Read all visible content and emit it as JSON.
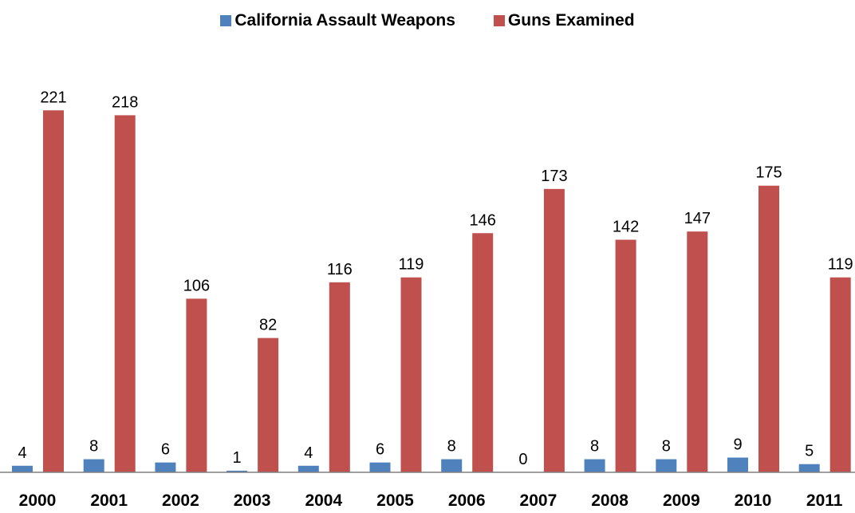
{
  "chart_data": {
    "type": "bar",
    "categories": [
      "2000",
      "2001",
      "2002",
      "2003",
      "2004",
      "2005",
      "2006",
      "2007",
      "2008",
      "2009",
      "2010",
      "2011"
    ],
    "series": [
      {
        "name": "California Assault Weapons",
        "color": "#4f81bd",
        "values": [
          4,
          8,
          6,
          1,
          4,
          6,
          8,
          0,
          8,
          8,
          9,
          5
        ]
      },
      {
        "name": "Guns Examined",
        "color": "#c0504d",
        "values": [
          221,
          218,
          106,
          82,
          116,
          119,
          146,
          173,
          142,
          147,
          175,
          119
        ]
      }
    ],
    "title": "",
    "xlabel": "",
    "ylabel": "",
    "ylim": [
      0,
      240
    ],
    "grid": false,
    "legend_position": "top",
    "data_labels": true
  }
}
